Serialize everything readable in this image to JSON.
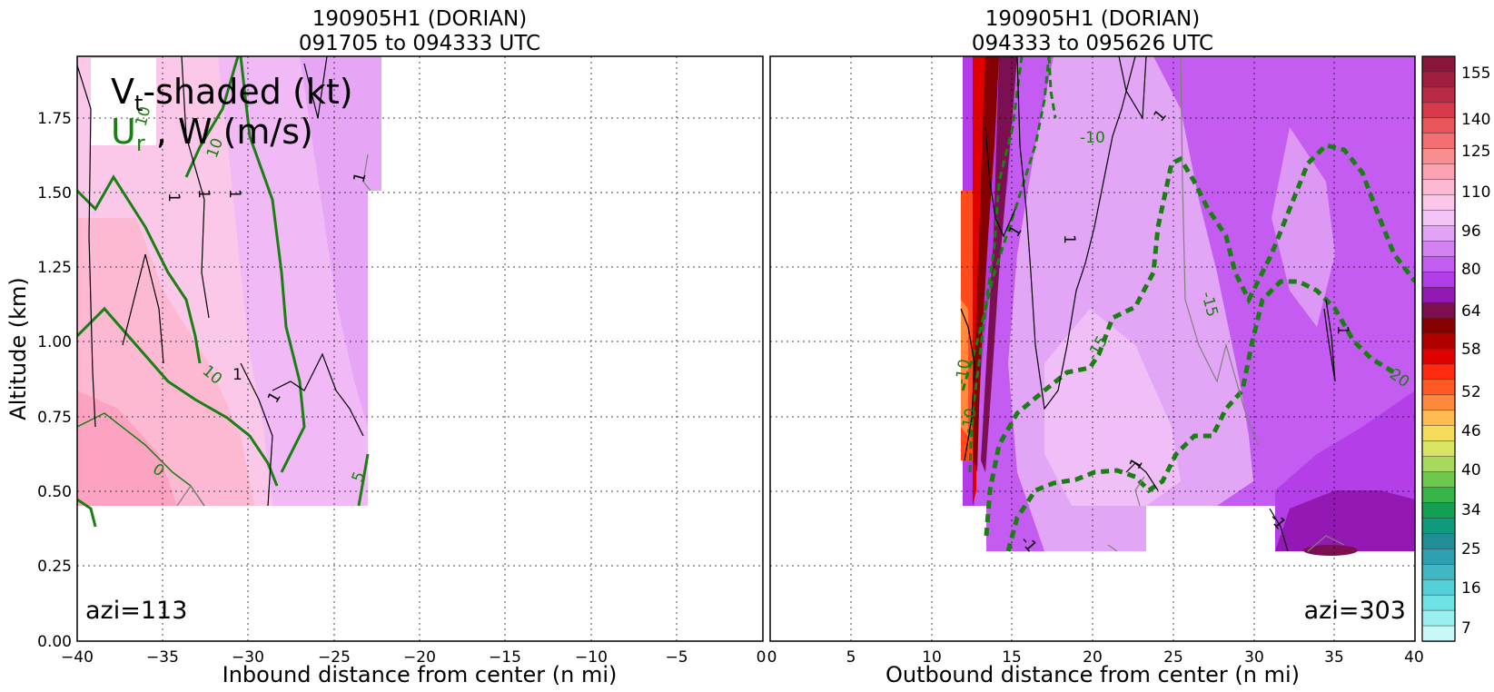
{
  "chart_data": [
    {
      "type": "heatmap",
      "title": "190905H1 (DORIAN)",
      "subtitle": "091705 to 094333 UTC",
      "xlabel": "Inbound distance from center (n mi)",
      "ylabel": "Altitude (km)",
      "xlim": [
        -40,
        0
      ],
      "ylim": [
        0,
        1.95
      ],
      "xticks": [
        "−40",
        "−35",
        "−30",
        "−25",
        "−20",
        "−15",
        "−10",
        "−5",
        "0"
      ],
      "yticks": [
        "0.00",
        "0.25",
        "0.50",
        "0.75",
        "1.00",
        "1.25",
        "1.50",
        "1.75"
      ],
      "grid": true,
      "legend": {
        "line1_main": "V",
        "line1_sub": "t",
        "line1_rest": "-shaded (kt)",
        "line2_main": "U",
        "line2_sub": "r",
        "line2_rest": " , W (m/s)",
        "placement": "top-left"
      },
      "annotation": "azi=113",
      "contour_labels_ur": [
        "10",
        "10",
        "10",
        "0",
        "5"
      ],
      "contour_labels_w": [
        "1",
        "1",
        "1",
        "1",
        "1",
        "1"
      ]
    },
    {
      "type": "heatmap",
      "title": "190905H1 (DORIAN)",
      "subtitle": "094333 to 095626 UTC",
      "xlabel": "Outbound distance from center (n mi)",
      "xlim": [
        0,
        40
      ],
      "ylim": [
        0,
        1.95
      ],
      "xticks": [
        "0",
        "5",
        "10",
        "15",
        "20",
        "25",
        "30",
        "35",
        "40"
      ],
      "grid": true,
      "annotation": "azi=303",
      "contour_labels_ur": [
        "-10",
        "-15",
        "-15",
        "-20",
        "-10",
        "-10"
      ],
      "contour_labels_w": [
        "1",
        "1",
        "1",
        "-1",
        "-1",
        "1",
        "1"
      ]
    }
  ],
  "colorbar": {
    "ticks": [
      "155",
      "140",
      "125",
      "110",
      "96",
      "80",
      "64",
      "58",
      "52",
      "46",
      "40",
      "34",
      "25",
      "16",
      "7"
    ],
    "colors": [
      "#8a1538",
      "#a01f3e",
      "#b82a46",
      "#d73a4a",
      "#e8555a",
      "#f46f72",
      "#fa8e8e",
      "#fca3b3",
      "#fdb8d2",
      "#fbc6e9",
      "#f3c2f7",
      "#e2a2f6",
      "#d382f4",
      "#c35cf1",
      "#b23ce8",
      "#9418b4",
      "#7c0e52",
      "#850000",
      "#b00000",
      "#e00000",
      "#ff2b10",
      "#ff5a24",
      "#ff8a3c",
      "#ffbb50",
      "#f5dc5a",
      "#d8e466",
      "#a6d95c",
      "#6ec84e",
      "#35b447",
      "#14a052",
      "#0f9a7c",
      "#1f8e96",
      "#2fa0b0",
      "#3fb7c5",
      "#55cfd8",
      "#6fe2e6",
      "#9aeff0",
      "#c8f8f8"
    ]
  }
}
